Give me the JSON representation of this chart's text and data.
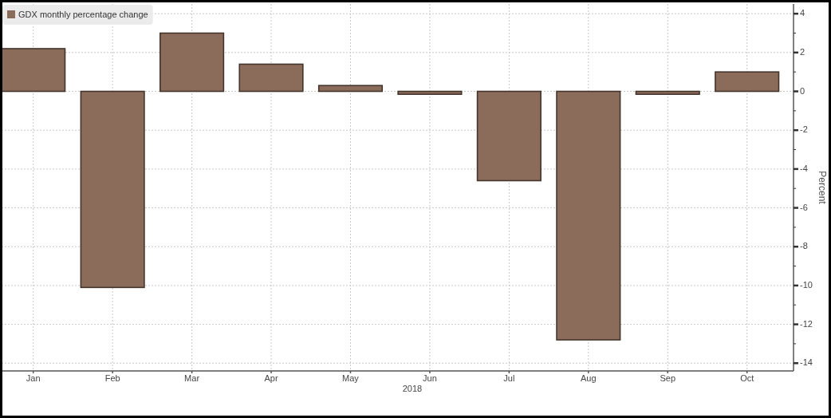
{
  "chart_data": {
    "type": "bar",
    "categories": [
      "Jan",
      "Feb",
      "Mar",
      "Apr",
      "May",
      "Jun",
      "Jul",
      "Aug",
      "Sep",
      "Oct"
    ],
    "series": [
      {
        "name": "GDX monthly percentage change",
        "color": "#8b6c5a",
        "values": [
          2.2,
          -10.1,
          3.0,
          1.4,
          0.3,
          -0.15,
          -4.6,
          -12.8,
          -0.15,
          1.0
        ]
      }
    ],
    "xlabel": "2018",
    "ylabel": "Percent",
    "ylim": [
      -14.4,
      4.5
    ],
    "yticks": [
      -14,
      {
        "value": -13,
        "label": null
      },
      -12,
      {
        "value": -11,
        "label": null
      },
      -10,
      {
        "value": -9,
        "label": null
      },
      -8,
      {
        "value": -7,
        "label": null
      },
      -6,
      {
        "value": -5,
        "label": null
      },
      -4,
      {
        "value": -3,
        "label": null
      },
      -2,
      {
        "value": -1,
        "label": null
      },
      0,
      {
        "value": 1,
        "label": null
      },
      2,
      {
        "value": 3,
        "label": null
      },
      4
    ],
    "grid": true,
    "legend": "top left"
  }
}
